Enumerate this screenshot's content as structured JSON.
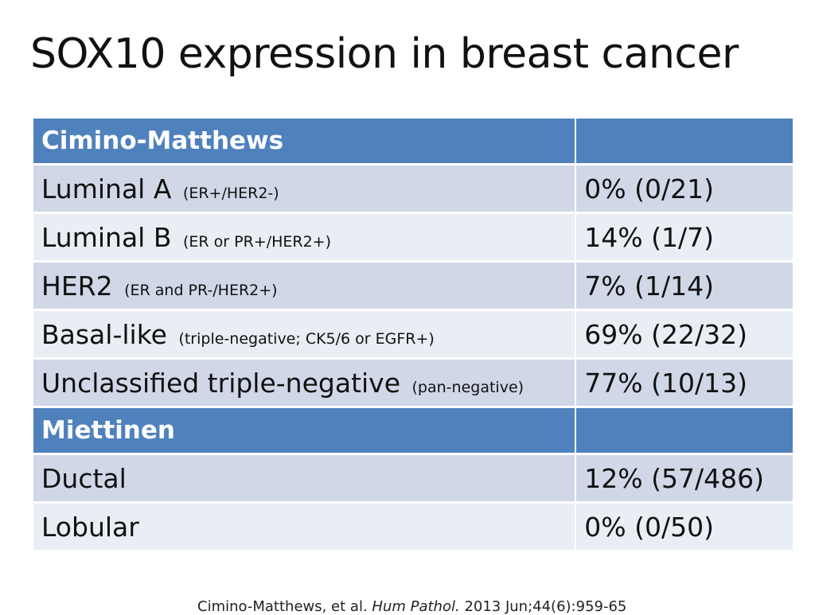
{
  "title": "SOX10 expression in breast cancer",
  "sections": [
    {
      "heading": "Cimino-Matthews",
      "rows": [
        {
          "label": "Luminal A",
          "qualifier": "(ER+/HER2-)",
          "value": "0% (0/21)"
        },
        {
          "label": "Luminal B",
          "qualifier": "(ER or PR+/HER2+)",
          "value": "14% (1/7)"
        },
        {
          "label": "HER2",
          "qualifier": "(ER and PR-/HER2+)",
          "value": "7% (1/14)"
        },
        {
          "label": "Basal-like",
          "qualifier": "(triple-negative; CK5/6 or EGFR+)",
          "value": "69% (22/32)"
        },
        {
          "label": "Unclassified triple-negative",
          "qualifier": "(pan-negative)",
          "value": "77% (10/13)"
        }
      ]
    },
    {
      "heading": "Miettinen",
      "rows": [
        {
          "label": "Ductal",
          "qualifier": "",
          "value": "12% (57/486)"
        },
        {
          "label": "Lobular",
          "qualifier": "",
          "value": "0% (0/50)"
        }
      ]
    }
  ],
  "footer": {
    "authors": "Cimino-Matthews, et al.",
    "journal": "Hum Pathol.",
    "details": "2013 Jun;44(6):959-65"
  },
  "colors": {
    "header_fill": "#4f81bd",
    "row_fill_dark": "#d0d8e8",
    "row_fill_light": "#e9edf4"
  }
}
